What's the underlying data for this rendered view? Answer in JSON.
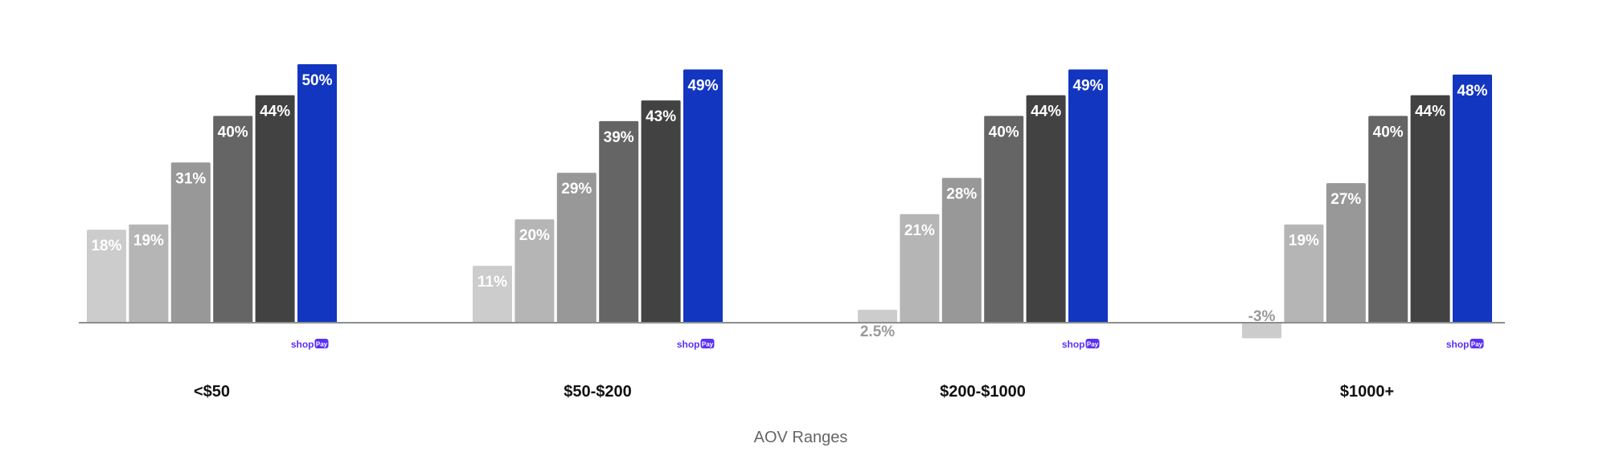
{
  "chart_data": {
    "type": "bar",
    "title": "",
    "xlabel": "AOV Ranges",
    "ylabel": "",
    "ylim": [
      -5,
      52
    ],
    "grid": false,
    "legend": "none",
    "categories": [
      "<$50",
      "$50-$200",
      "$200-$1000",
      "$1000+"
    ],
    "series": [
      {
        "values": [
          18,
          11,
          2.5,
          -3
        ],
        "labels": [
          "18%",
          "11%",
          "2.5%",
          "-3%"
        ],
        "color": "#cccccc"
      },
      {
        "values": [
          19,
          20,
          21,
          19
        ],
        "labels": [
          "19%",
          "20%",
          "21%",
          "19%"
        ],
        "color": "#b5b5b5"
      },
      {
        "values": [
          31,
          29,
          28,
          27
        ],
        "labels": [
          "31%",
          "29%",
          "28%",
          "27%"
        ],
        "color": "#989898"
      },
      {
        "values": [
          40,
          39,
          40,
          40
        ],
        "labels": [
          "40%",
          "39%",
          "40%",
          "40%"
        ],
        "color": "#656565"
      },
      {
        "values": [
          44,
          43,
          44,
          44
        ],
        "labels": [
          "44%",
          "43%",
          "44%",
          "44%"
        ],
        "color": "#424242"
      },
      {
        "values": [
          50,
          49,
          49,
          48
        ],
        "labels": [
          "50%",
          "49%",
          "49%",
          "48%"
        ],
        "color": "#1336c0",
        "logo": "shop Pay"
      }
    ]
  },
  "logo": {
    "shop": "shop",
    "pay": "Pay",
    "color": "#5a31f4"
  }
}
